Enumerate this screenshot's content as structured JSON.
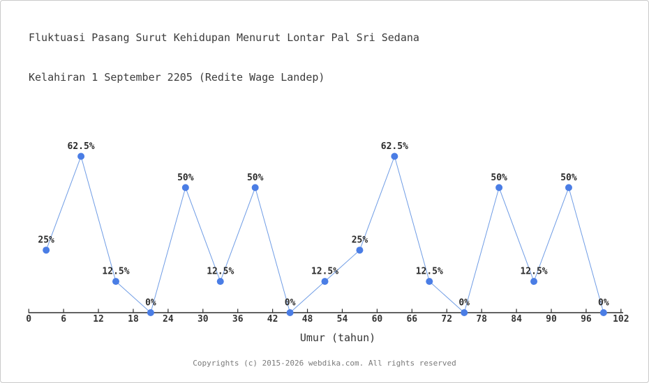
{
  "page": {
    "background": "#ffffff",
    "border_color": "#c9c9c9"
  },
  "chart_data": {
    "type": "line",
    "title_lines": [
      "Fluktuasi Pasang Surut Kehidupan Menurut Lontar Pal Sri Sedana",
      "Kelahiran 1 September 2205 (Redite Wage Landep)"
    ],
    "xlabel": "Umur (tahun)",
    "ylabel": "",
    "x": [
      3,
      9,
      15,
      21,
      27,
      33,
      39,
      45,
      51,
      57,
      63,
      69,
      75,
      81,
      87,
      93,
      99
    ],
    "values": [
      25,
      62.5,
      12.5,
      0,
      50,
      12.5,
      50,
      0,
      12.5,
      25,
      62.5,
      12.5,
      0,
      50,
      12.5,
      50,
      0
    ],
    "point_labels": [
      "25%",
      "62.5%",
      "12.5%",
      "0%",
      "50%",
      "12.5%",
      "50%",
      "0%",
      "12.5%",
      "25%",
      "62.5%",
      "12.5%",
      "0%",
      "50%",
      "12.5%",
      "50%",
      "0%"
    ],
    "x_ticks": [
      0,
      6,
      12,
      18,
      24,
      30,
      36,
      42,
      48,
      54,
      60,
      66,
      72,
      78,
      84,
      90,
      96,
      102
    ],
    "xlim": [
      0,
      102
    ],
    "ylim": [
      0,
      100
    ],
    "grid": false,
    "legend": false,
    "colors": {
      "point": "#4a7de5",
      "line": "#6f9ce5",
      "axis": "#2e2e2e",
      "tick_label": "#333333",
      "point_label": "#2b2b2b",
      "title": "#3b3b3b",
      "axis_label": "#333333",
      "footer": "#7a7a7a"
    }
  },
  "footer": {
    "copyright": "Copyrights (c) 2015-2026 webdika.com. All rights reserved"
  }
}
